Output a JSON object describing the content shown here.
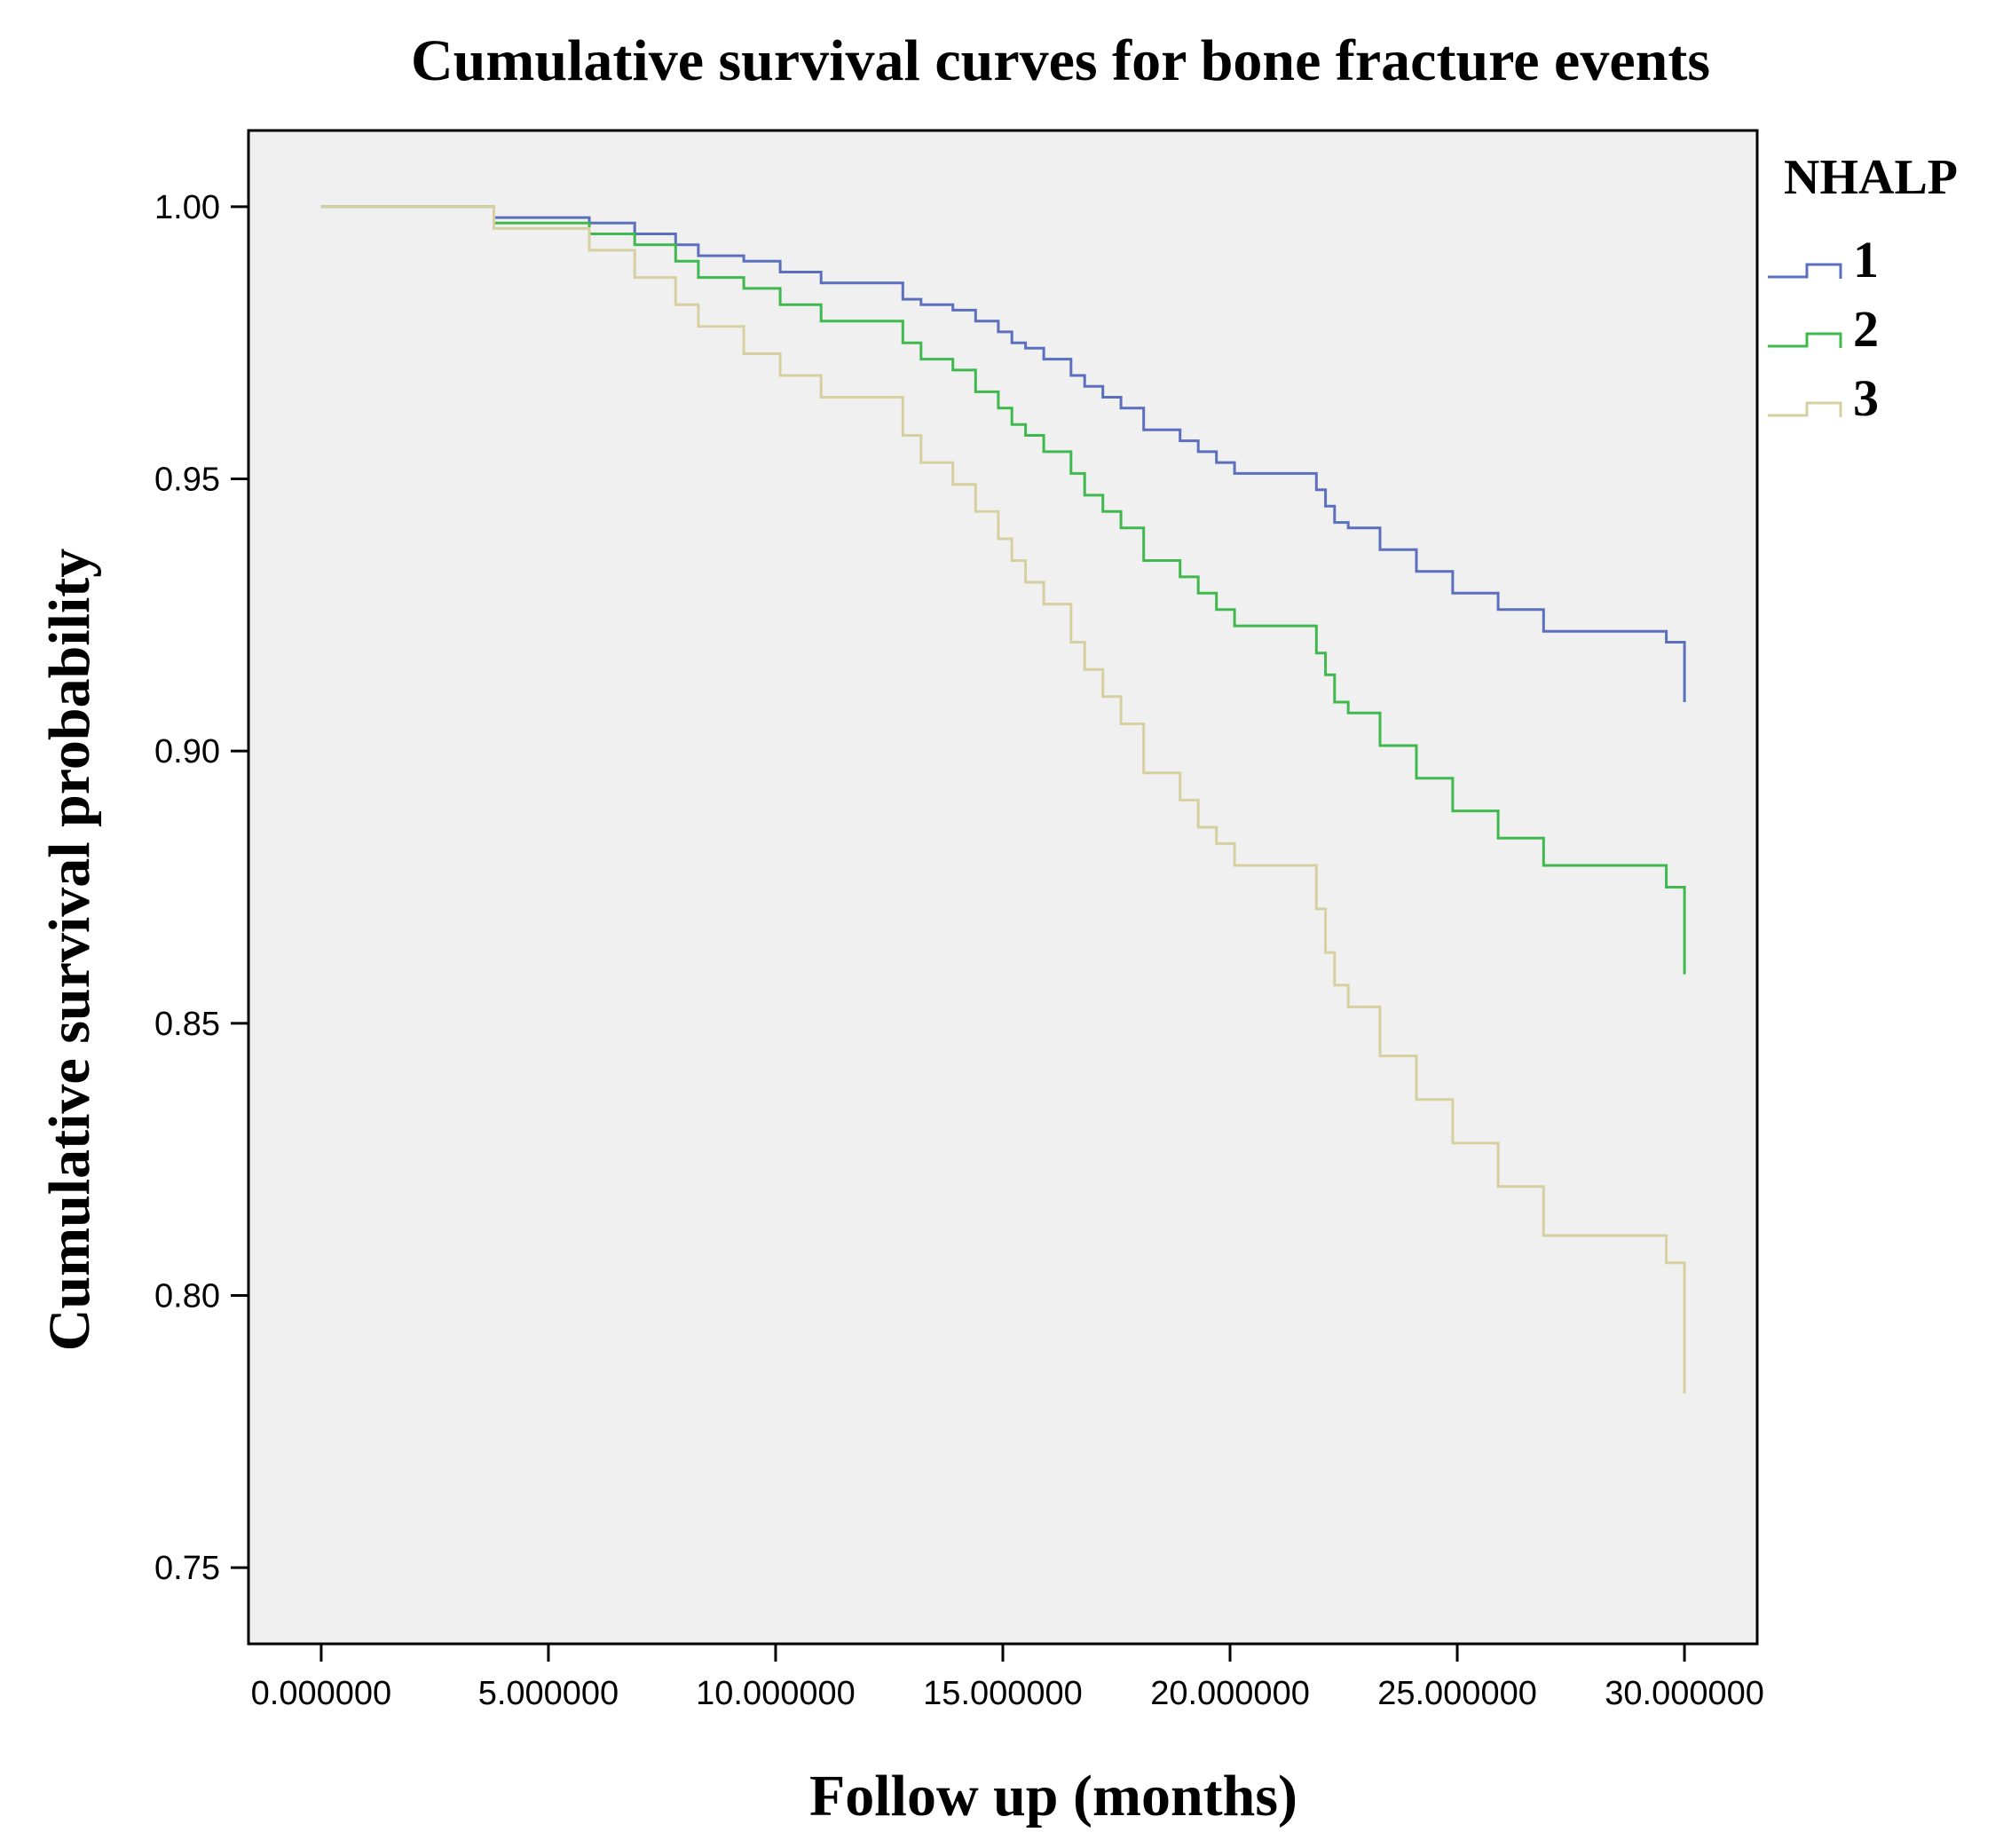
{
  "chart_data": {
    "type": "line",
    "step": true,
    "title": "Cumulative survival curves for bone fracture events",
    "xlabel": "Follow up (months)",
    "ylabel": "Cumulative survival probability",
    "xlim": [
      -1.6,
      31.6
    ],
    "ylim": [
      0.736,
      1.014
    ],
    "x_ticks": [
      0,
      5,
      10,
      15,
      20,
      25,
      30
    ],
    "x_tick_labels": [
      "0.000000",
      "5.000000",
      "10.000000",
      "15.000000",
      "20.000000",
      "25.000000",
      "30.000000"
    ],
    "y_ticks": [
      0.75,
      0.8,
      0.85,
      0.9,
      0.95,
      1.0
    ],
    "y_tick_labels": [
      "0.75",
      "0.80",
      "0.85",
      "0.90",
      "0.95",
      "1.00"
    ],
    "grid": false,
    "legend": {
      "title": "NHALP",
      "placement": "right",
      "entries": [
        "1",
        "2",
        "3"
      ]
    },
    "colors": {
      "plot_background": "#f0f0f0",
      "axis": "#000000"
    },
    "series": [
      {
        "name": "1",
        "color": "#5a6fbd",
        "x": [
          0,
          3.8,
          5.9,
          6.9,
          7.8,
          8.3,
          9.3,
          10.1,
          11.0,
          12.8,
          13.2,
          13.9,
          14.4,
          14.9,
          15.2,
          15.5,
          15.9,
          16.5,
          16.8,
          17.2,
          17.6,
          18.1,
          18.9,
          19.3,
          19.7,
          20.1,
          21.9,
          22.1,
          22.3,
          22.6,
          23.3,
          24.1,
          24.9,
          25.9,
          26.9,
          29.6,
          30.0
        ],
        "y": [
          1.0,
          0.998,
          0.997,
          0.995,
          0.993,
          0.991,
          0.99,
          0.988,
          0.986,
          0.983,
          0.982,
          0.981,
          0.979,
          0.977,
          0.975,
          0.974,
          0.972,
          0.969,
          0.967,
          0.965,
          0.963,
          0.959,
          0.957,
          0.955,
          0.953,
          0.951,
          0.948,
          0.945,
          0.942,
          0.941,
          0.937,
          0.933,
          0.929,
          0.926,
          0.922,
          0.92,
          0.909
        ]
      },
      {
        "name": "2",
        "color": "#3fb84d",
        "x": [
          0,
          3.8,
          5.9,
          6.9,
          7.8,
          8.3,
          9.3,
          10.1,
          11.0,
          12.8,
          13.2,
          13.9,
          14.4,
          14.9,
          15.2,
          15.5,
          15.9,
          16.5,
          16.8,
          17.2,
          17.6,
          18.1,
          18.9,
          19.3,
          19.7,
          20.1,
          21.9,
          22.1,
          22.3,
          22.6,
          23.3,
          24.1,
          24.9,
          25.9,
          26.9,
          29.6,
          30.0
        ],
        "y": [
          1.0,
          0.997,
          0.995,
          0.993,
          0.99,
          0.987,
          0.985,
          0.982,
          0.979,
          0.975,
          0.972,
          0.97,
          0.966,
          0.963,
          0.96,
          0.958,
          0.955,
          0.951,
          0.947,
          0.944,
          0.941,
          0.935,
          0.932,
          0.929,
          0.926,
          0.923,
          0.918,
          0.914,
          0.909,
          0.907,
          0.901,
          0.895,
          0.889,
          0.884,
          0.879,
          0.875,
          0.859
        ]
      },
      {
        "name": "3",
        "color": "#d6d0a0",
        "x": [
          0,
          3.8,
          5.9,
          6.9,
          7.8,
          8.3,
          9.3,
          10.1,
          11.0,
          12.8,
          13.2,
          13.9,
          14.4,
          14.9,
          15.2,
          15.5,
          15.9,
          16.5,
          16.8,
          17.2,
          17.6,
          18.1,
          18.9,
          19.3,
          19.7,
          20.1,
          21.9,
          22.1,
          22.3,
          22.6,
          23.3,
          24.1,
          24.9,
          25.9,
          26.9,
          29.6,
          30.0
        ],
        "y": [
          1.0,
          0.996,
          0.992,
          0.987,
          0.982,
          0.978,
          0.973,
          0.969,
          0.965,
          0.958,
          0.953,
          0.949,
          0.944,
          0.939,
          0.935,
          0.931,
          0.927,
          0.92,
          0.915,
          0.91,
          0.905,
          0.896,
          0.891,
          0.886,
          0.883,
          0.879,
          0.871,
          0.863,
          0.857,
          0.853,
          0.844,
          0.836,
          0.828,
          0.82,
          0.811,
          0.806,
          0.782
        ]
      }
    ]
  }
}
